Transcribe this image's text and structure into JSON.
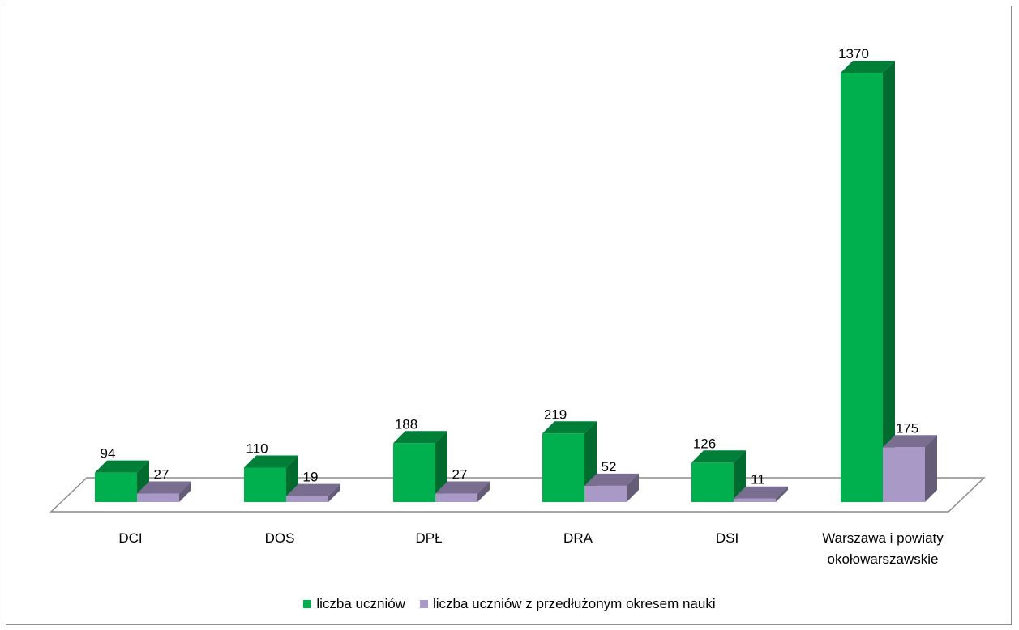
{
  "chart_data": {
    "type": "bar",
    "categories": [
      "DCI",
      "DOS",
      "DPŁ",
      "DRA",
      "DSI",
      "Warszawa i powiaty okołowarszawskie"
    ],
    "series": [
      {
        "name": "liczba uczniów",
        "values": [
          94,
          110,
          188,
          219,
          126,
          1370
        ],
        "color": "#00b04f"
      },
      {
        "name": "liczba uczniów z przedłużonym okresem nauki",
        "values": [
          27,
          19,
          27,
          52,
          11,
          175
        ],
        "color": "#a899c6"
      }
    ],
    "ylim": [
      0,
      1370
    ],
    "grid": false,
    "legend_position": "bottom"
  },
  "legend": {
    "item0": "liczba uczniów",
    "item1": "liczba uczniów z przedłużonym okresem nauki"
  }
}
